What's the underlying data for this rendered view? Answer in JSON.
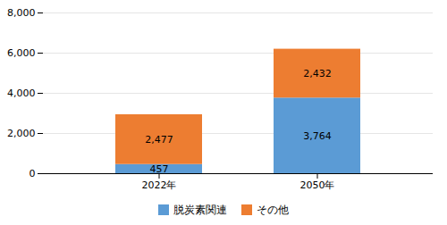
{
  "chart_data": {
    "type": "bar",
    "stacked": true,
    "categories": [
      "2022年",
      "2050年"
    ],
    "series": [
      {
        "name": "脱炭素関連",
        "color": "#5B9BD5",
        "values": [
          457,
          3764
        ],
        "value_labels": [
          "457",
          "3,764"
        ]
      },
      {
        "name": "その他",
        "color": "#ED7D31",
        "values": [
          2477,
          2432
        ],
        "value_labels": [
          "2,477",
          "2,432"
        ]
      }
    ],
    "ylim": [
      0,
      8000
    ],
    "yticks": [
      0,
      {
        "value": 2000,
        "label": "2,000"
      },
      {
        "value": 4000,
        "label": "4,000"
      },
      {
        "value": 6000,
        "label": "6,000"
      },
      {
        "value": 8000,
        "label": "8,000"
      }
    ],
    "grid": true,
    "legend": "bottom",
    "data_labels": true
  }
}
